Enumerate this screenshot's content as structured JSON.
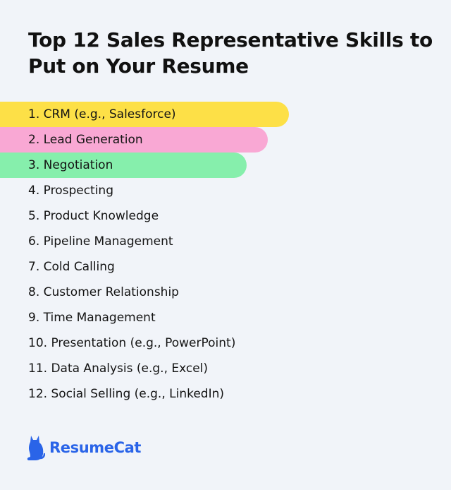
{
  "title": "Top 12 Sales Representative Skills to Put on Your Resume",
  "skills": [
    {
      "label": "1. CRM (e.g., Salesforce)",
      "highlight": "#fde047"
    },
    {
      "label": "2. Lead Generation",
      "highlight": "#f9a8d4"
    },
    {
      "label": "3. Negotiation",
      "highlight": "#86efac"
    },
    {
      "label": "4. Prospecting"
    },
    {
      "label": "5. Product Knowledge"
    },
    {
      "label": "6. Pipeline Management"
    },
    {
      "label": "7. Cold Calling"
    },
    {
      "label": "8. Customer Relationship"
    },
    {
      "label": "9. Time Management"
    },
    {
      "label": "10. Presentation (e.g., PowerPoint)"
    },
    {
      "label": "11. Data Analysis (e.g., Excel)"
    },
    {
      "label": "12. Social Selling (e.g., LinkedIn)"
    }
  ],
  "logo": {
    "text": "ResumeCat",
    "icon": "cat-icon",
    "color": "#2a64e8"
  }
}
